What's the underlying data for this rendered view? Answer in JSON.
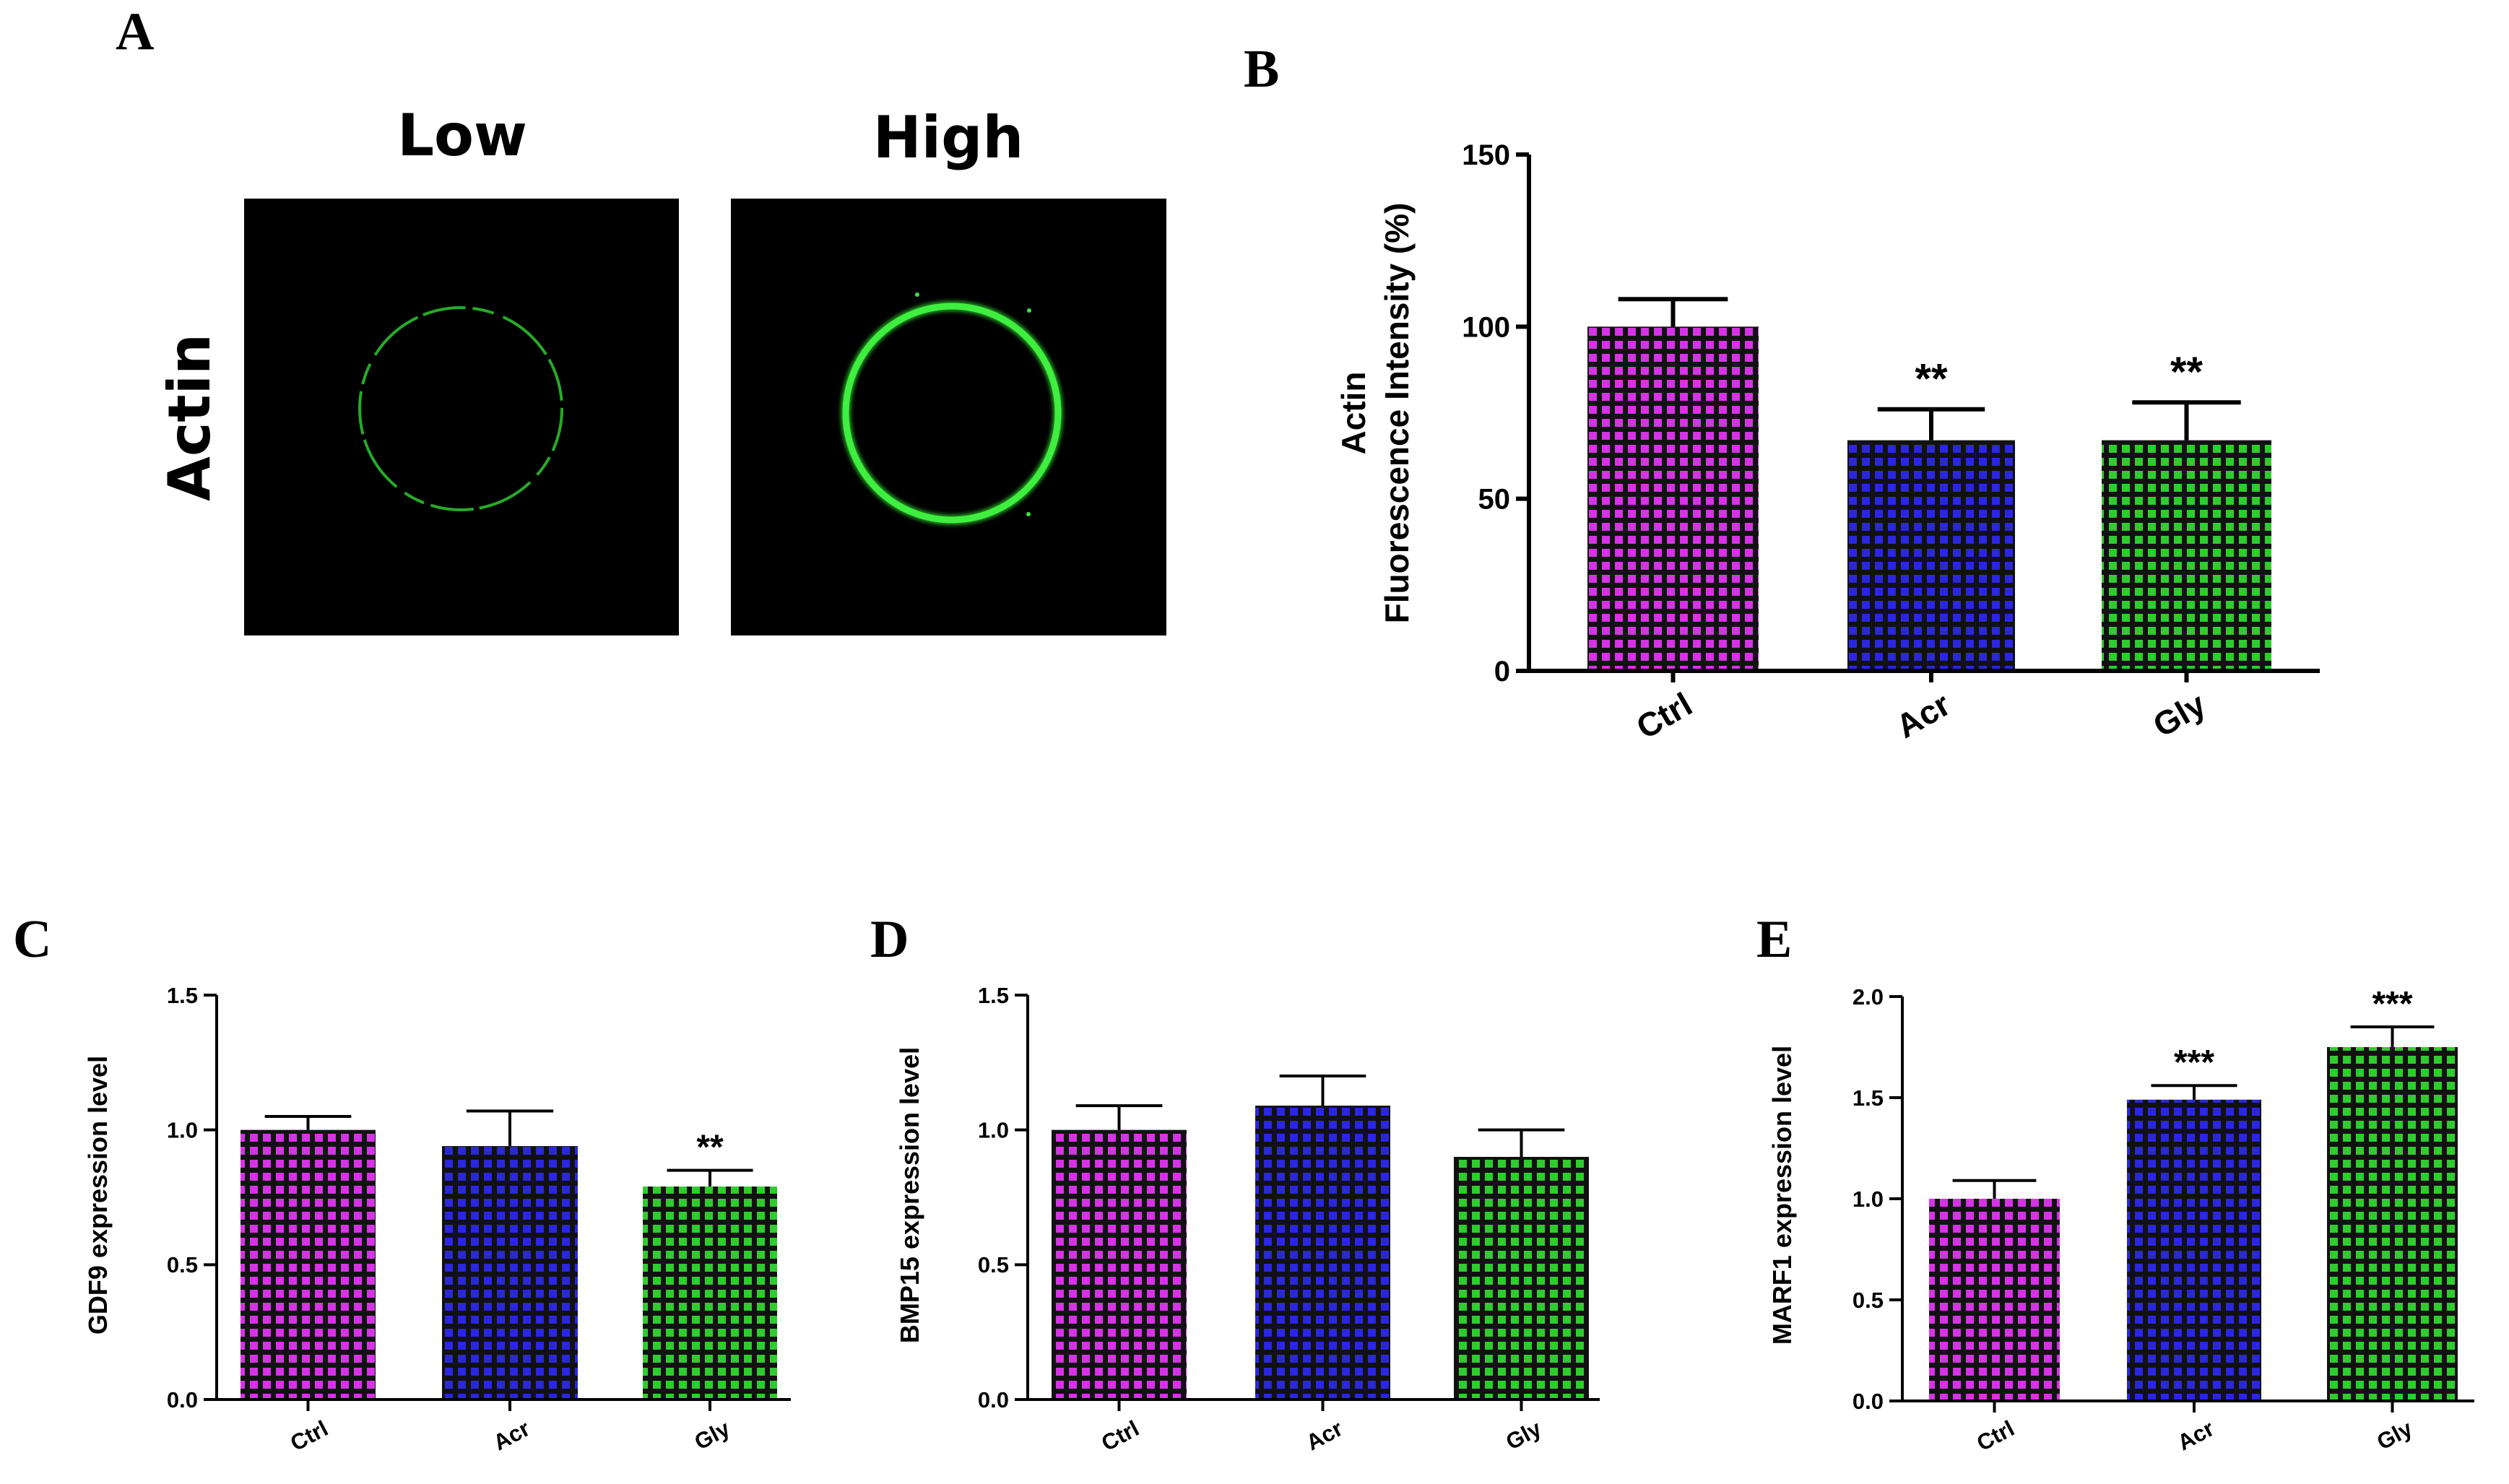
{
  "panel_a": {
    "letter": "A",
    "columns": [
      "Low",
      "High"
    ],
    "row_label": "Actin",
    "fluor_color": "#39e639"
  },
  "colors": {
    "Ctrl": "#d633e6",
    "Acr": "#2b26e0",
    "Gly": "#2fcc2f",
    "grid_dark": "#111111"
  },
  "chart_data": [
    {
      "id": "B",
      "letter": "B",
      "type": "bar",
      "categories": [
        "Ctrl",
        "Acr",
        "Gly"
      ],
      "values": [
        100,
        67,
        67
      ],
      "errors": [
        8,
        9,
        11
      ],
      "significance": [
        "",
        "**",
        "**"
      ],
      "ylabel_lines": [
        "Actin",
        "Fluorescence Intensity (%)"
      ],
      "ylim": [
        0,
        150
      ],
      "yticks": [
        0,
        50,
        100,
        150
      ],
      "ytick_labels": [
        "0",
        "50",
        "100",
        "150"
      ]
    },
    {
      "id": "C",
      "letter": "C",
      "type": "bar",
      "categories": [
        "Ctrl",
        "Acr",
        "Gly"
      ],
      "values": [
        1.0,
        0.94,
        0.79
      ],
      "errors": [
        0.05,
        0.13,
        0.06
      ],
      "significance": [
        "",
        "",
        "**"
      ],
      "ylabel_lines": [
        "GDF9 expression level"
      ],
      "ylim": [
        0,
        1.5
      ],
      "yticks": [
        0,
        0.5,
        1.0,
        1.5
      ],
      "ytick_labels": [
        "0.0",
        "0.5",
        "1.0",
        "1.5"
      ]
    },
    {
      "id": "D",
      "letter": "D",
      "type": "bar",
      "categories": [
        "Ctrl",
        "Acr",
        "Gly"
      ],
      "values": [
        1.0,
        1.09,
        0.9
      ],
      "errors": [
        0.09,
        0.11,
        0.1
      ],
      "significance": [
        "",
        "",
        ""
      ],
      "ylabel_lines": [
        "BMP15 expression level"
      ],
      "ylim": [
        0,
        1.5
      ],
      "yticks": [
        0,
        0.5,
        1.0,
        1.5
      ],
      "ytick_labels": [
        "0.0",
        "0.5",
        "1.0",
        "1.5"
      ]
    },
    {
      "id": "E",
      "letter": "E",
      "type": "bar",
      "categories": [
        "Ctrl",
        "Acr",
        "Gly"
      ],
      "values": [
        1.0,
        1.49,
        1.75
      ],
      "errors": [
        0.09,
        0.07,
        0.1
      ],
      "significance": [
        "",
        "***",
        "***"
      ],
      "ylabel_lines": [
        "MARF1 expression level"
      ],
      "ylim": [
        0,
        2.0
      ],
      "yticks": [
        0,
        0.5,
        1.0,
        1.5,
        2.0
      ],
      "ytick_labels": [
        "0.0",
        "0.5",
        "1.0",
        "1.5",
        "2.0"
      ]
    }
  ]
}
